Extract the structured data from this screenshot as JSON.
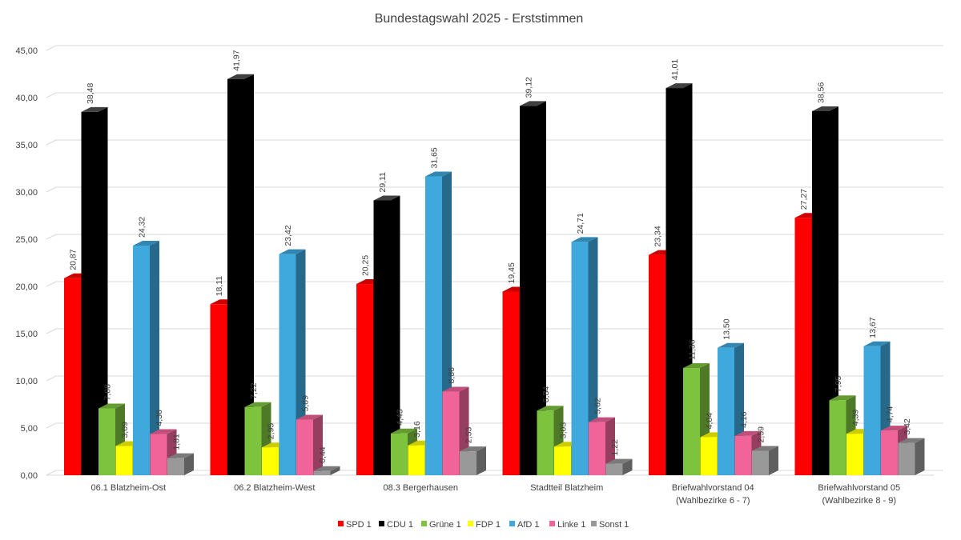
{
  "chart_data": {
    "type": "bar",
    "style": "3d-clustered-column",
    "title": "Bundestagswahl 2025 - Erststimmen",
    "xlabel": "",
    "ylabel": "",
    "ylim": [
      0,
      45
    ],
    "yticks": [
      "0,00",
      "5,00",
      "10,00",
      "15,00",
      "20,00",
      "25,00",
      "30,00",
      "35,00",
      "40,00",
      "45,00"
    ],
    "grid": true,
    "legend_position": "bottom",
    "categories": [
      [
        "06.1 Blatzheim-Ost"
      ],
      [
        "06.2 Blatzheim-West"
      ],
      [
        "08.3 Bergerhausen"
      ],
      [
        "Stadtteil Blatzheim"
      ],
      [
        "Briefwahlvorstand 04",
        "(Wahlbezirke 6 - 7)"
      ],
      [
        "Briefwahlvorstand 05",
        "(Wahlbezirke 8 - 9)"
      ]
    ],
    "series": [
      {
        "name": "SPD 1",
        "color": "#ff0000",
        "values": [
          20.87,
          18.11,
          20.25,
          19.45,
          23.34,
          27.27
        ],
        "labels": [
          "20,87",
          "18,11",
          "20,25",
          "19,45",
          "23,34",
          "27,27"
        ]
      },
      {
        "name": "CDU 1",
        "color": "#000000",
        "values": [
          38.48,
          41.97,
          29.11,
          39.12,
          41.01,
          38.56
        ],
        "labels": [
          "38,48",
          "41,97",
          "29,11",
          "39,12",
          "41,01",
          "38,56"
        ]
      },
      {
        "name": "Grüne 1",
        "color": "#7ec33d",
        "values": [
          7.08,
          7.22,
          4.43,
          6.84,
          11.36,
          7.95
        ],
        "labels": [
          "7,08",
          "7,22",
          "4,43",
          "6,84",
          "11,36",
          "7,95"
        ]
      },
      {
        "name": "FDP 1",
        "color": "#ffff00",
        "values": [
          3.09,
          2.95,
          3.16,
          3.03,
          4.04,
          4.39
        ],
        "labels": [
          "3,09",
          "2,95",
          "3,16",
          "3,03",
          "4,04",
          "4,39"
        ]
      },
      {
        "name": "AfD 1",
        "color": "#3fa9de",
        "values": [
          24.32,
          23.42,
          31.65,
          24.71,
          13.5,
          13.67
        ],
        "labels": [
          "24,32",
          "23,42",
          "31,65",
          "24,71",
          "13,50",
          "13,67"
        ]
      },
      {
        "name": "Linke 1",
        "color": "#f0649a",
        "values": [
          4.36,
          5.89,
          8.86,
          5.62,
          4.16,
          4.74
        ],
        "labels": [
          "4,36",
          "5,89",
          "8,86",
          "5,62",
          "4,16",
          "4,74"
        ]
      },
      {
        "name": "Sonst 1",
        "color": "#999999",
        "values": [
          1.81,
          0.44,
          2.53,
          1.22,
          2.59,
          3.42
        ],
        "labels": [
          "1,81",
          "0,44",
          "2,53",
          "1,22",
          "2,59",
          "3,42"
        ]
      }
    ]
  }
}
